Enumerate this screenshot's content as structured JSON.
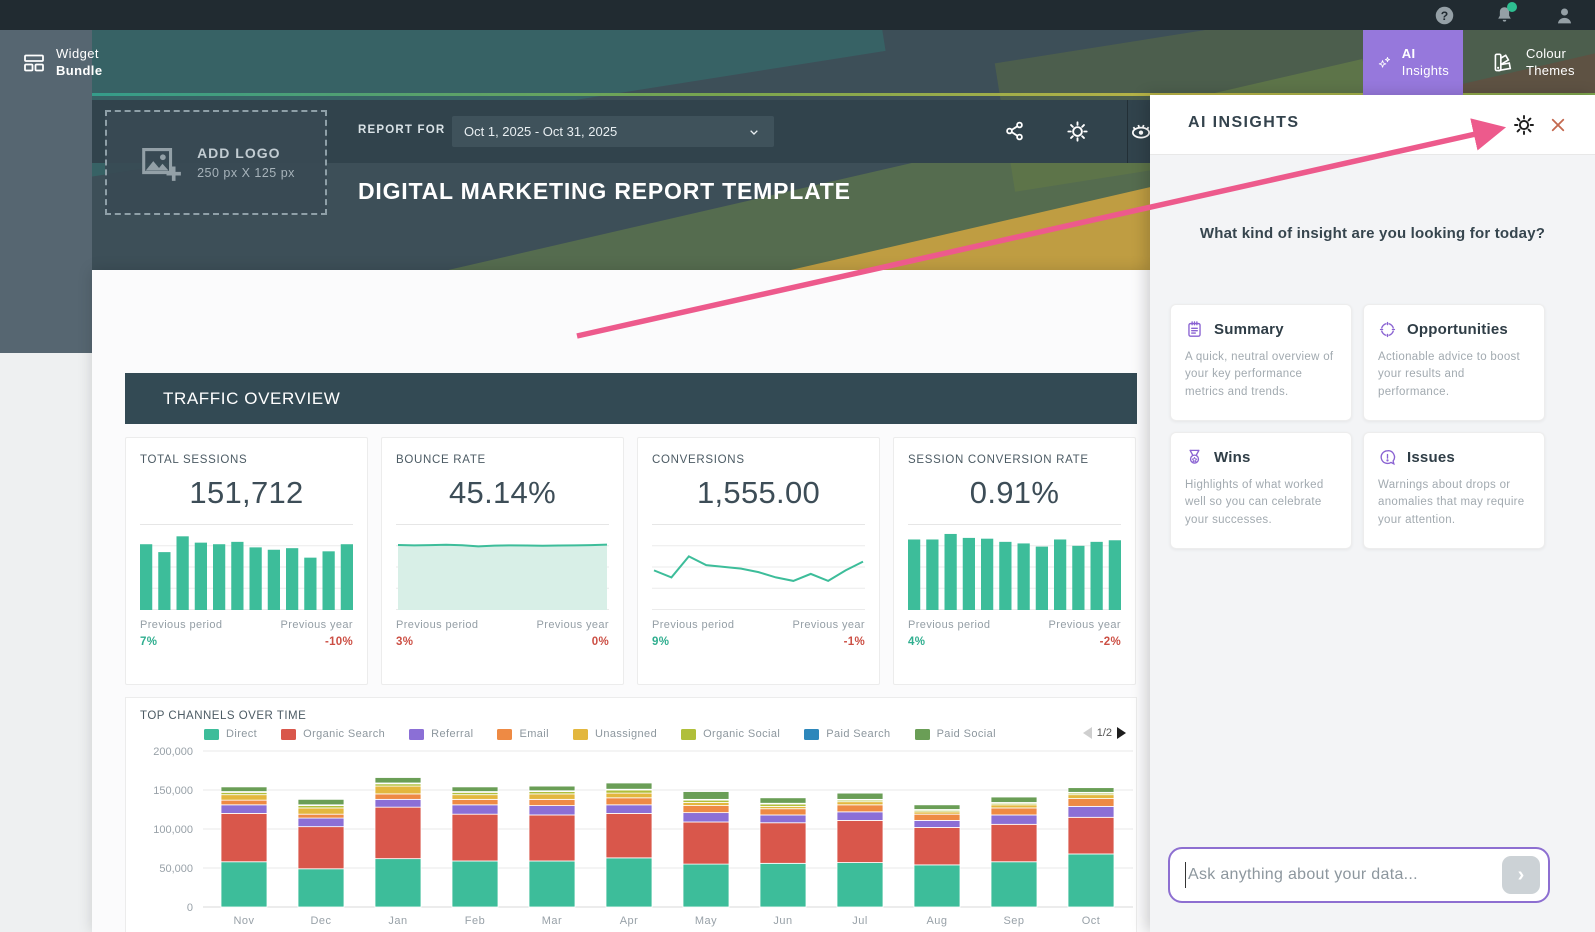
{
  "colors": {
    "green": "#2fae8f",
    "red": "#cc4f44",
    "teal": "#3dbd9a",
    "purple": "#8a63d2",
    "ai_button": "#9678dc",
    "arrow_pink": "#ed5a8c",
    "header_dark": "#334a54"
  },
  "navbar": {
    "brand_line1": "Widget",
    "brand_line2": "Bundle",
    "ai_insights_line1": "AI",
    "ai_insights_line2": "Insights",
    "colour_themes_line1": "Colour",
    "colour_themes_line2": "Themes"
  },
  "report_header": {
    "add_logo_title": "ADD LOGO",
    "add_logo_size": "250 px X 125 px",
    "report_for": "REPORT FOR",
    "date_range": "Oct 1, 2025 - Oct 31, 2025",
    "title": "DIGITAL MARKETING REPORT TEMPLATE"
  },
  "traffic": {
    "section_title": "TRAFFIC OVERVIEW",
    "kpis": [
      {
        "label": "TOTAL SESSIONS",
        "value": "151,712",
        "chart": "total-sessions-spark",
        "prev_period_label": "Previous period",
        "prev_year_label": "Previous year",
        "prev_period_value": "7%",
        "prev_period_color": "green",
        "prev_year_value": "-10%",
        "prev_year_color": "red"
      },
      {
        "label": "BOUNCE RATE",
        "value": "45.14%",
        "chart": "bounce-rate-spark",
        "prev_period_label": "Previous period",
        "prev_year_label": "Previous year",
        "prev_period_value": "3%",
        "prev_period_color": "red",
        "prev_year_value": "0%",
        "prev_year_color": "red"
      },
      {
        "label": "CONVERSIONS",
        "value": "1,555.00",
        "chart": "conversions-spark",
        "prev_period_label": "Previous period",
        "prev_year_label": "Previous year",
        "prev_period_value": "9%",
        "prev_period_color": "green",
        "prev_year_value": "-1%",
        "prev_year_color": "red"
      },
      {
        "label": "SESSION CONVERSION RATE",
        "value": "0.91%",
        "chart": "session-cr-spark",
        "prev_period_label": "Previous period",
        "prev_year_label": "Previous year",
        "prev_period_value": "4%",
        "prev_period_color": "green",
        "prev_year_value": "-2%",
        "prev_year_color": "red"
      }
    ]
  },
  "top_channels": {
    "title": "TOP CHANNELS OVER TIME",
    "pagination": "1/2"
  },
  "ai_panel": {
    "title": "AI INSIGHTS",
    "question": "What kind of insight are you looking for today?",
    "cards": [
      {
        "icon": "notepad-icon",
        "title": "Summary",
        "desc": "A quick, neutral overview of your key performance metrics and trends."
      },
      {
        "icon": "target-icon",
        "title": "Opportunities",
        "desc": "Actionable advice to boost your results and performance."
      },
      {
        "icon": "medal-icon",
        "title": "Wins",
        "desc": "Highlights of what worked well so you can celebrate your successes."
      },
      {
        "icon": "alert-bubble-icon",
        "title": "Issues",
        "desc": "Warnings about drops or anomalies that may require your attention."
      }
    ],
    "input_placeholder": "Ask anything about your data..."
  },
  "chart_data": [
    {
      "name": "total-sessions-spark",
      "type": "bar",
      "color": "#3dbd9a",
      "ylim": [
        0,
        100
      ],
      "values": [
        82,
        72,
        92,
        84,
        82,
        85,
        78,
        75,
        77,
        65,
        73,
        82
      ]
    },
    {
      "name": "bounce-rate-spark",
      "type": "area",
      "color": "#3dbd9a",
      "fill": "#d8efe7",
      "ylim": [
        0,
        56
      ],
      "values": [
        45.4,
        45.1,
        45.3,
        45.5,
        45.2,
        44.4,
        44.9,
        45.1,
        45.0,
        44.8,
        45.0,
        45.1,
        45.3,
        45.6
      ]
    },
    {
      "name": "conversions-spark",
      "type": "line",
      "color": "#3dbd9a",
      "ylim": [
        30,
        75
      ],
      "values": [
        52,
        48,
        60,
        55,
        54,
        53,
        51,
        48,
        46,
        50,
        46,
        52,
        57
      ]
    },
    {
      "name": "session-cr-spark",
      "type": "bar",
      "color": "#3dbd9a",
      "ylim": [
        0,
        100
      ],
      "values": [
        88,
        88,
        95,
        90,
        89,
        85,
        83,
        79,
        88,
        80,
        85,
        87
      ]
    },
    {
      "name": "top-channels",
      "type": "stacked-bar",
      "title": "TOP CHANNELS OVER TIME",
      "categories": [
        "Nov",
        "Dec",
        "Jan",
        "Feb",
        "Mar",
        "Apr",
        "May",
        "Jun",
        "Jul",
        "Aug",
        "Sep",
        "Oct"
      ],
      "ylim": [
        0,
        200000
      ],
      "yticks": [
        "200,000",
        "150,000",
        "100,000",
        "50,000",
        "0"
      ],
      "legend_position": "top",
      "grid": true,
      "series": [
        {
          "name": "Direct",
          "color": "#3dbd9a",
          "values": [
            58000,
            49000,
            62000,
            59000,
            59000,
            63000,
            55000,
            56000,
            57000,
            54000,
            58000,
            68000
          ]
        },
        {
          "name": "Organic Search",
          "color": "#d9574b",
          "values": [
            62000,
            54000,
            66000,
            60000,
            59000,
            57000,
            54000,
            52000,
            54000,
            48000,
            48000,
            47000
          ]
        },
        {
          "name": "Referral",
          "color": "#8b6fd6",
          "values": [
            11000,
            11000,
            10000,
            12000,
            12000,
            11000,
            12000,
            10000,
            11000,
            9000,
            12000,
            14000
          ]
        },
        {
          "name": "Email",
          "color": "#ee8a44",
          "values": [
            6000,
            5000,
            7000,
            7000,
            8000,
            9000,
            9000,
            8000,
            9000,
            8000,
            9000,
            10000
          ]
        },
        {
          "name": "Unassigned",
          "color": "#e3b73e",
          "values": [
            7000,
            8000,
            10000,
            6000,
            7000,
            6000,
            4000,
            3000,
            4000,
            3000,
            4000,
            5000
          ]
        },
        {
          "name": "Organic Social",
          "color": "#b0bf3a",
          "values": [
            3000,
            3000,
            3000,
            3000,
            3000,
            4000,
            3000,
            3000,
            2000,
            2000,
            2000,
            2000
          ]
        },
        {
          "name": "Paid Search",
          "color": "#2d87bb",
          "values": [
            1000,
            1000,
            1000,
            1000,
            1000,
            1000,
            1000,
            1000,
            1000,
            1000,
            1000,
            1000
          ]
        },
        {
          "name": "Paid Social",
          "color": "#6a9e56",
          "values": [
            6000,
            7000,
            7000,
            6000,
            6000,
            8000,
            10000,
            7000,
            8000,
            6000,
            7000,
            6000
          ]
        }
      ]
    }
  ]
}
